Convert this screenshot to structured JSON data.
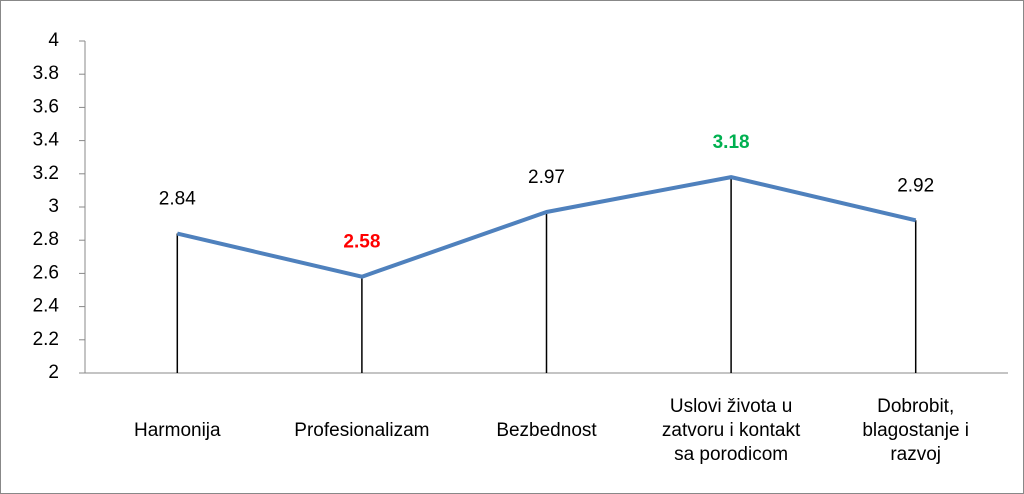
{
  "chart_data": {
    "type": "line",
    "categories": [
      "Harmonija",
      "Profesionalizam",
      "Bezbednost",
      "Uslovi života u\nzatvoru i kontakt\nsa porodicom",
      "Dobrobit,\nblagostanje i\nrazvoj"
    ],
    "values": [
      2.84,
      2.58,
      2.97,
      3.18,
      2.92
    ],
    "color": "#4f81bd",
    "value_label_colors": [
      "#000000",
      "#ff0000",
      "#000000",
      "#00b050",
      "#000000"
    ],
    "value_label_bold": [
      false,
      true,
      false,
      true,
      false
    ],
    "drop_lines": true,
    "ylim": [
      2,
      4
    ],
    "yticks": [
      2,
      2.2,
      2.4,
      2.6,
      2.8,
      3,
      3.2,
      3.4,
      3.6,
      3.8,
      4
    ],
    "grid": false
  }
}
